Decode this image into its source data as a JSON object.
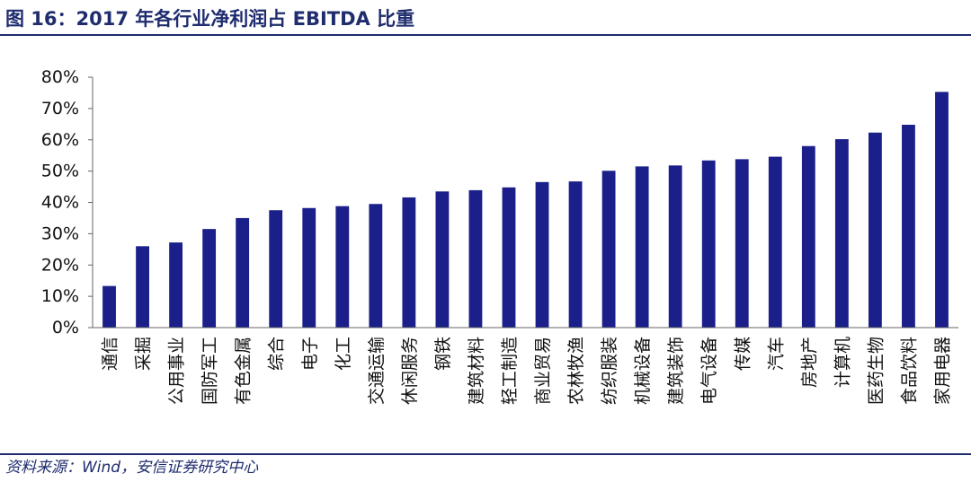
{
  "figure": {
    "title": "图 16：2017 年各行业净利润占 EBITDA 比重",
    "source": "资料来源：Wind，安信证券研究中心"
  },
  "colors": {
    "bar": "#1a1f8a",
    "rule": "#1f2d6e",
    "axis": "#666666"
  },
  "chart_data": {
    "type": "bar",
    "title": "",
    "xlabel": "",
    "ylabel": "",
    "ylim": [
      0,
      80
    ],
    "y_ticks": [
      0,
      10,
      20,
      30,
      40,
      50,
      60,
      70,
      80
    ],
    "y_tick_labels": [
      "0%",
      "10%",
      "20%",
      "30%",
      "40%",
      "50%",
      "60%",
      "70%",
      "80%"
    ],
    "grid": false,
    "legend": "none",
    "categories": [
      "通信",
      "采掘",
      "公用事业",
      "国防军工",
      "有色金属",
      "综合",
      "电子",
      "化工",
      "交通运输",
      "休闲服务",
      "钢铁",
      "建筑材料",
      "轻工制造",
      "商业贸易",
      "农林牧渔",
      "纺织服装",
      "机械设备",
      "建筑装饰",
      "电气设备",
      "传媒",
      "汽车",
      "房地产",
      "计算机",
      "医药生物",
      "食品饮料",
      "家用电器"
    ],
    "values": [
      13.3,
      26.0,
      27.2,
      31.5,
      35.0,
      37.5,
      38.2,
      38.8,
      39.5,
      41.6,
      43.5,
      43.9,
      44.8,
      46.5,
      46.7,
      50.1,
      51.5,
      51.8,
      53.4,
      53.8,
      54.6,
      58.0,
      60.2,
      62.3,
      64.8,
      75.3
    ]
  }
}
